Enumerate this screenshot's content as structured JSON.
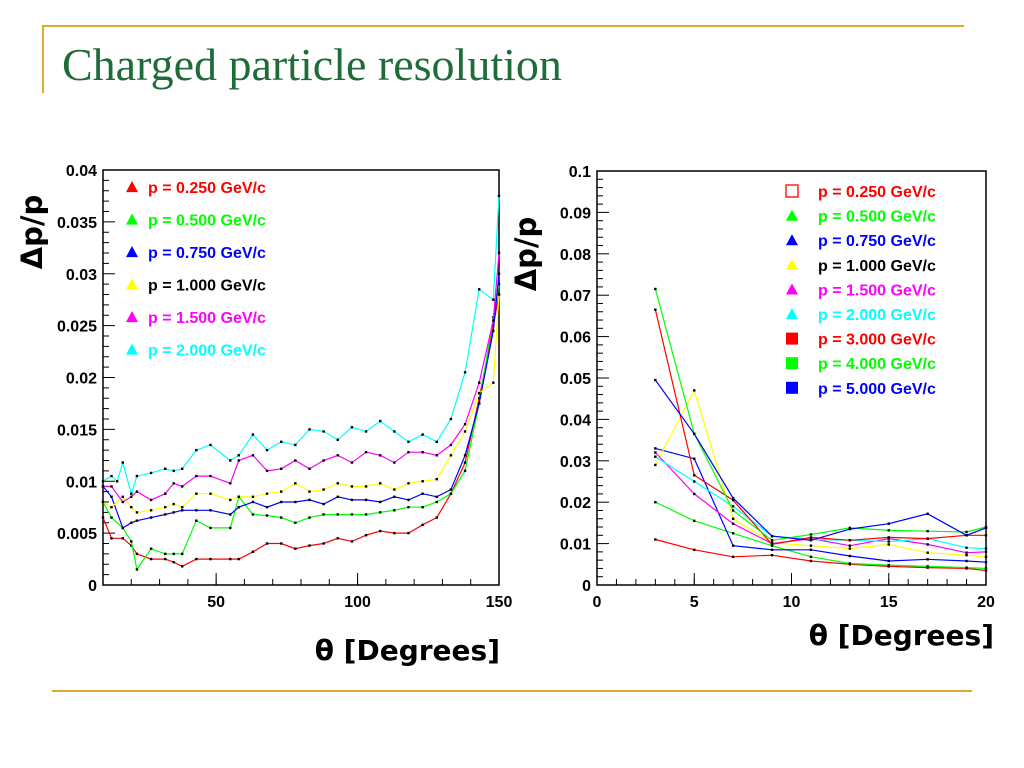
{
  "slide": {
    "title": "Charged particle resolution"
  },
  "chart_data": [
    {
      "type": "line",
      "ylabel": "Δp/p",
      "xlabel": "θ [Degrees]",
      "xlim": [
        10,
        150
      ],
      "ylim": [
        0,
        0.04
      ],
      "x_ticks": [
        "50",
        "100",
        "150"
      ],
      "y_ticks": [
        "0",
        "0.005",
        "0.01",
        "0.015",
        "0.02",
        "0.025",
        "0.03",
        "0.035",
        "0.04"
      ],
      "legend_position": "top-left",
      "grid": false,
      "series": [
        {
          "name": "p = 0.250 GeV/c",
          "color": "#ff0000",
          "marker": "triangle-filled",
          "x": [
            10,
            13,
            17,
            20,
            22,
            27,
            32,
            35,
            38,
            43,
            48,
            55,
            58,
            63,
            68,
            73,
            78,
            83,
            88,
            93,
            98,
            103,
            108,
            113,
            118,
            123,
            128,
            133,
            138,
            143,
            148,
            150
          ],
          "y": [
            0.0065,
            0.0045,
            0.0045,
            0.0038,
            0.003,
            0.0025,
            0.0025,
            0.0022,
            0.0018,
            0.0025,
            0.0025,
            0.0025,
            0.0025,
            0.0032,
            0.004,
            0.004,
            0.0035,
            0.0038,
            0.004,
            0.0045,
            0.0042,
            0.0048,
            0.0052,
            0.005,
            0.005,
            0.0058,
            0.0065,
            0.0088,
            0.0118,
            0.018,
            0.025,
            0.028
          ]
        },
        {
          "name": "p = 0.500 GeV/c",
          "color": "#00ff00",
          "marker": "triangle-filled",
          "x": [
            10,
            13,
            17,
            20,
            22,
            27,
            32,
            35,
            38,
            43,
            48,
            55,
            58,
            63,
            68,
            73,
            78,
            83,
            88,
            93,
            98,
            103,
            108,
            113,
            118,
            123,
            128,
            133,
            138,
            143,
            148,
            150
          ],
          "y": [
            0.008,
            0.0065,
            0.0055,
            0.0042,
            0.0015,
            0.0035,
            0.003,
            0.003,
            0.003,
            0.0062,
            0.0055,
            0.0055,
            0.0085,
            0.0068,
            0.0067,
            0.0065,
            0.006,
            0.0065,
            0.0068,
            0.0068,
            0.0068,
            0.0068,
            0.007,
            0.0072,
            0.0075,
            0.0075,
            0.008,
            0.0088,
            0.011,
            0.0175,
            0.0258,
            0.029
          ]
        },
        {
          "name": "p = 0.750 GeV/c",
          "color": "#0000ff",
          "marker": "triangle-filled",
          "x": [
            10,
            13,
            17,
            20,
            22,
            27,
            32,
            35,
            38,
            43,
            48,
            55,
            58,
            63,
            68,
            73,
            78,
            83,
            88,
            93,
            98,
            103,
            108,
            113,
            118,
            123,
            128,
            133,
            138,
            143,
            148,
            150
          ],
          "y": [
            0.0095,
            0.0085,
            0.0055,
            0.006,
            0.0062,
            0.0065,
            0.0068,
            0.007,
            0.0072,
            0.0072,
            0.0072,
            0.0068,
            0.0075,
            0.008,
            0.0075,
            0.008,
            0.008,
            0.0082,
            0.0078,
            0.0085,
            0.0082,
            0.0082,
            0.008,
            0.0085,
            0.0082,
            0.0088,
            0.0085,
            0.0092,
            0.0125,
            0.0175,
            0.0245,
            0.03
          ]
        },
        {
          "name": "p = 1.000 GeV/c",
          "color": "#ffff00",
          "marker": "triangle-filled",
          "x": [
            10,
            13,
            17,
            20,
            22,
            27,
            32,
            35,
            38,
            43,
            48,
            55,
            58,
            63,
            68,
            73,
            78,
            83,
            88,
            93,
            98,
            103,
            108,
            113,
            118,
            123,
            128,
            133,
            138,
            143,
            148,
            150
          ],
          "y": [
            0.008,
            0.0075,
            0.0085,
            0.0075,
            0.007,
            0.0072,
            0.0075,
            0.0078,
            0.0075,
            0.0088,
            0.0088,
            0.0082,
            0.0085,
            0.0085,
            0.0088,
            0.009,
            0.0098,
            0.009,
            0.0092,
            0.0098,
            0.0095,
            0.0095,
            0.0098,
            0.0092,
            0.0098,
            0.01,
            0.0102,
            0.0125,
            0.0148,
            0.0185,
            0.0195,
            0.028
          ]
        },
        {
          "name": "p = 1.500 GeV/c",
          "color": "#ff00ff",
          "marker": "triangle-filled",
          "x": [
            10,
            13,
            17,
            20,
            22,
            27,
            32,
            35,
            38,
            43,
            48,
            55,
            58,
            63,
            68,
            73,
            78,
            83,
            88,
            93,
            98,
            103,
            108,
            113,
            118,
            123,
            128,
            133,
            138,
            143,
            148,
            150
          ],
          "y": [
            0.0095,
            0.0095,
            0.008,
            0.0085,
            0.009,
            0.0082,
            0.0088,
            0.0098,
            0.0095,
            0.0105,
            0.0105,
            0.0098,
            0.012,
            0.0125,
            0.011,
            0.0112,
            0.012,
            0.0112,
            0.012,
            0.0125,
            0.0118,
            0.0128,
            0.0125,
            0.0118,
            0.0128,
            0.0128,
            0.0125,
            0.0135,
            0.0155,
            0.0195,
            0.0255,
            0.032
          ]
        },
        {
          "name": "p = 2.000 GeV/c",
          "color": "#00ffff",
          "marker": "triangle-filled",
          "x": [
            10,
            13,
            15,
            17,
            20,
            22,
            27,
            32,
            35,
            38,
            43,
            48,
            55,
            58,
            63,
            68,
            73,
            78,
            83,
            88,
            93,
            98,
            103,
            108,
            113,
            118,
            123,
            128,
            133,
            138,
            143,
            148,
            150
          ],
          "y": [
            0.01,
            0.0105,
            0.01,
            0.0118,
            0.0088,
            0.0105,
            0.0108,
            0.0112,
            0.011,
            0.0112,
            0.013,
            0.0135,
            0.012,
            0.0125,
            0.0145,
            0.013,
            0.0138,
            0.0135,
            0.015,
            0.0148,
            0.014,
            0.0152,
            0.0148,
            0.0158,
            0.0148,
            0.0138,
            0.0145,
            0.0138,
            0.016,
            0.0205,
            0.0285,
            0.0275,
            0.0375
          ]
        }
      ]
    },
    {
      "type": "line",
      "ylabel": "Δp/p",
      "xlabel": "θ [Degrees]",
      "xlim": [
        0,
        20
      ],
      "ylim": [
        0,
        0.1
      ],
      "x_ticks": [
        "0",
        "5",
        "10",
        "15",
        "20"
      ],
      "y_ticks": [
        "0",
        "0.01",
        "0.02",
        "0.03",
        "0.04",
        "0.05",
        "0.06",
        "0.07",
        "0.08",
        "0.09",
        "0.1"
      ],
      "legend_position": "top-right",
      "grid": false,
      "series": [
        {
          "name": "p = 0.250 GeV/c",
          "color": "#ff0000",
          "marker": "square-open",
          "x": [
            3,
            5,
            7,
            9,
            11,
            13,
            15,
            17,
            19,
            20
          ],
          "y": [
            0.011,
            0.0085,
            0.0068,
            0.0072,
            0.0058,
            0.005,
            0.0045,
            0.0042,
            0.004,
            0.0035
          ]
        },
        {
          "name": "p = 0.500 GeV/c",
          "color": "#00ff00",
          "marker": "triangle-filled",
          "x": [
            3,
            5,
            7,
            9,
            11,
            13,
            15,
            17,
            19,
            20
          ],
          "y": [
            0.02,
            0.0155,
            0.0125,
            0.0095,
            0.0068,
            0.0052,
            0.0048,
            0.0045,
            0.0042,
            0.004
          ]
        },
        {
          "name": "p = 0.750 GeV/c",
          "color": "#0000ff",
          "marker": "triangle-filled",
          "x": [
            3,
            5,
            7,
            9,
            11,
            13,
            15,
            17,
            19,
            20
          ],
          "y": [
            0.033,
            0.0305,
            0.0095,
            0.0085,
            0.0085,
            0.007,
            0.0058,
            0.0062,
            0.0058,
            0.0055
          ]
        },
        {
          "name": "p = 1.000 GeV/c",
          "color": "#ffff00",
          "marker": "triangle-filled",
          "x": [
            3,
            5,
            7,
            9,
            11,
            13,
            15,
            17,
            19,
            20
          ],
          "y": [
            0.029,
            0.047,
            0.016,
            0.0102,
            0.0095,
            0.0088,
            0.0098,
            0.0078,
            0.0072,
            0.0068
          ]
        },
        {
          "name": "p = 1.500 GeV/c",
          "color": "#ff00ff",
          "marker": "triangle-filled",
          "x": [
            3,
            5,
            7,
            9,
            11,
            13,
            15,
            17,
            19,
            20
          ],
          "y": [
            0.032,
            0.022,
            0.0148,
            0.01,
            0.0112,
            0.0095,
            0.0112,
            0.0098,
            0.0078,
            0.008
          ]
        },
        {
          "name": "p = 2.000 GeV/c",
          "color": "#00ffff",
          "marker": "triangle-filled",
          "x": [
            3,
            5,
            7,
            9,
            11,
            13,
            15,
            17,
            19,
            20
          ],
          "y": [
            0.031,
            0.025,
            0.019,
            0.0118,
            0.011,
            0.0108,
            0.0105,
            0.0112,
            0.009,
            0.0088
          ]
        },
        {
          "name": "p = 3.000 GeV/c",
          "color": "#ff0000",
          "marker": "square-filled",
          "x": [
            3,
            5,
            7,
            9,
            11,
            13,
            15,
            17,
            19,
            20
          ],
          "y": [
            0.0665,
            0.0265,
            0.0205,
            0.0098,
            0.0115,
            0.0108,
            0.0115,
            0.0112,
            0.012,
            0.012
          ]
        },
        {
          "name": "p = 4.000 GeV/c",
          "color": "#00ff00",
          "marker": "square-filled",
          "x": [
            3,
            5,
            7,
            9,
            11,
            13,
            15,
            17,
            19,
            20
          ],
          "y": [
            0.0715,
            0.0365,
            0.018,
            0.0108,
            0.0122,
            0.0138,
            0.0132,
            0.013,
            0.0128,
            0.014
          ]
        },
        {
          "name": "p = 5.000 GeV/c",
          "color": "#0000ff",
          "marker": "square-filled",
          "x": [
            3,
            5,
            7,
            9,
            11,
            13,
            15,
            17,
            19,
            20
          ],
          "y": [
            0.0495,
            0.0365,
            0.021,
            0.0118,
            0.0108,
            0.0135,
            0.0148,
            0.0172,
            0.012,
            0.0138
          ]
        }
      ]
    }
  ]
}
